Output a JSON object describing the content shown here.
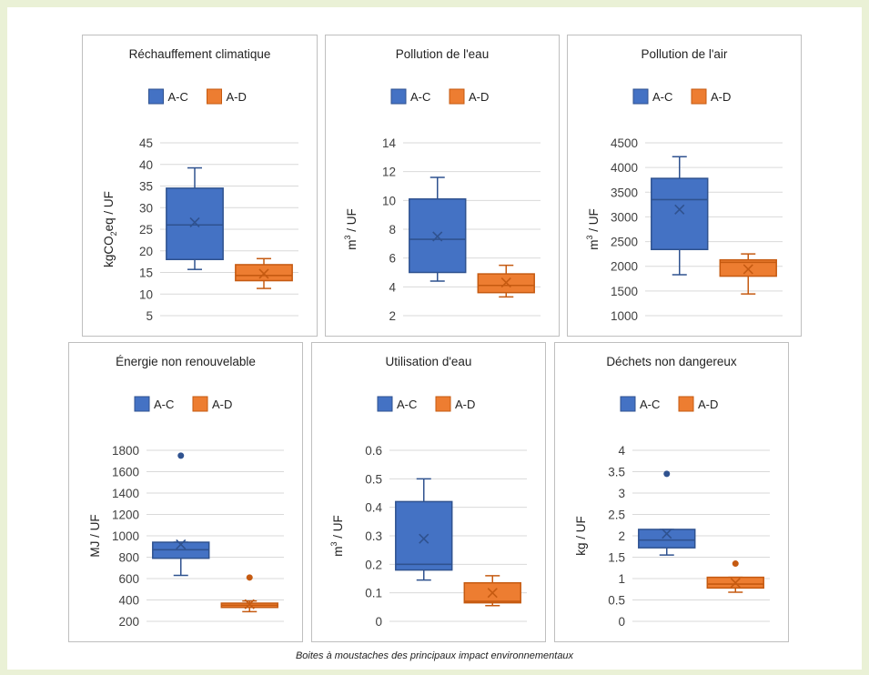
{
  "caption": "Boites à moustaches des principaux impact environnementaux",
  "legend": {
    "a": "A-C",
    "b": "A-D"
  },
  "colors": {
    "a_fill": "#4472c4",
    "a_line": "#2f528f",
    "b_fill": "#ed7d31",
    "b_line": "#c55a11",
    "grid": "#d9d9d9",
    "text": "#404040"
  },
  "chart_data": [
    {
      "type": "boxplot",
      "title": "Réchauffement climatique",
      "ylabel": "kgCO",
      "ylabel_sub": "2",
      "ylabel_tail": "eq / UF",
      "ylim": [
        5,
        45
      ],
      "yticks": [
        "5",
        "10",
        "15",
        "20",
        "25",
        "30",
        "35",
        "40",
        "45"
      ],
      "series": [
        {
          "name": "A-C",
          "min": 15.7,
          "q1": 18,
          "median": 26,
          "q3": 34.5,
          "max": 39.2,
          "mean": 26.6,
          "outliers": []
        },
        {
          "name": "A-D",
          "min": 11.3,
          "q1": 13.1,
          "median": 14.3,
          "q3": 16.8,
          "max": 18.2,
          "mean": 14.7,
          "outliers": []
        }
      ]
    },
    {
      "type": "boxplot",
      "title": "Pollution de l'eau",
      "ylabel": "m",
      "ylabel_sup": "3",
      "ylabel_tail": " / UF",
      "ylim": [
        2,
        14
      ],
      "yticks": [
        "2",
        "4",
        "6",
        "8",
        "10",
        "12",
        "14"
      ],
      "series": [
        {
          "name": "A-C",
          "min": 4.4,
          "q1": 5.0,
          "median": 7.3,
          "q3": 10.1,
          "max": 11.6,
          "mean": 7.5,
          "outliers": []
        },
        {
          "name": "A-D",
          "min": 3.3,
          "q1": 3.6,
          "median": 4.1,
          "q3": 4.9,
          "max": 5.5,
          "mean": 4.3,
          "outliers": []
        }
      ]
    },
    {
      "type": "boxplot",
      "title": "Pollution de l'air",
      "ylabel": "m",
      "ylabel_sup": "3",
      "ylabel_tail": " / UF",
      "ylim": [
        1000,
        4500
      ],
      "yticks": [
        "1000",
        "1500",
        "2000",
        "2500",
        "3000",
        "3500",
        "4000",
        "4500"
      ],
      "series": [
        {
          "name": "A-C",
          "min": 1830,
          "q1": 2340,
          "median": 3350,
          "q3": 3780,
          "max": 4220,
          "mean": 3150,
          "outliers": []
        },
        {
          "name": "A-D",
          "min": 1440,
          "q1": 1800,
          "median": 2080,
          "q3": 2130,
          "max": 2250,
          "mean": 1940,
          "outliers": []
        }
      ]
    },
    {
      "type": "boxplot",
      "title": "Énergie non renouvelable",
      "ylabel": "MJ / UF",
      "ylim": [
        200,
        1800
      ],
      "yticks": [
        "200",
        "400",
        "600",
        "800",
        "1000",
        "1200",
        "1400",
        "1600",
        "1800"
      ],
      "series": [
        {
          "name": "A-C",
          "min": 630,
          "q1": 790,
          "median": 870,
          "q3": 940,
          "max": 940,
          "mean": 920,
          "outliers": [
            1750
          ]
        },
        {
          "name": "A-D",
          "min": 290,
          "q1": 330,
          "median": 350,
          "q3": 370,
          "max": 390,
          "mean": 360,
          "outliers": [
            610
          ]
        }
      ]
    },
    {
      "type": "boxplot",
      "title": "Utilisation d'eau",
      "ylabel": "m",
      "ylabel_sup": "3",
      "ylabel_tail": " / UF",
      "ylim": [
        0,
        0.6
      ],
      "yticks": [
        "0",
        "0.1",
        "0.2",
        "0.3",
        "0.4",
        "0.5",
        "0.6"
      ],
      "series": [
        {
          "name": "A-C",
          "min": 0.145,
          "q1": 0.18,
          "median": 0.2,
          "q3": 0.42,
          "max": 0.5,
          "mean": 0.29,
          "outliers": []
        },
        {
          "name": "A-D",
          "min": 0.055,
          "q1": 0.065,
          "median": 0.07,
          "q3": 0.135,
          "max": 0.16,
          "mean": 0.1,
          "outliers": []
        }
      ]
    },
    {
      "type": "boxplot",
      "title": "Déchets non dangereux",
      "ylabel": "kg / UF",
      "ylim": [
        0,
        4
      ],
      "yticks": [
        "0",
        "0.5",
        "1",
        "1.5",
        "2",
        "2.5",
        "3",
        "3.5",
        "4"
      ],
      "series": [
        {
          "name": "A-C",
          "min": 1.55,
          "q1": 1.72,
          "median": 1.9,
          "q3": 2.15,
          "max": 2.15,
          "mean": 2.05,
          "outliers": [
            3.45
          ]
        },
        {
          "name": "A-D",
          "min": 0.68,
          "q1": 0.78,
          "median": 0.87,
          "q3": 1.03,
          "max": 1.03,
          "mean": 0.9,
          "outliers": [
            1.35
          ]
        }
      ]
    }
  ]
}
